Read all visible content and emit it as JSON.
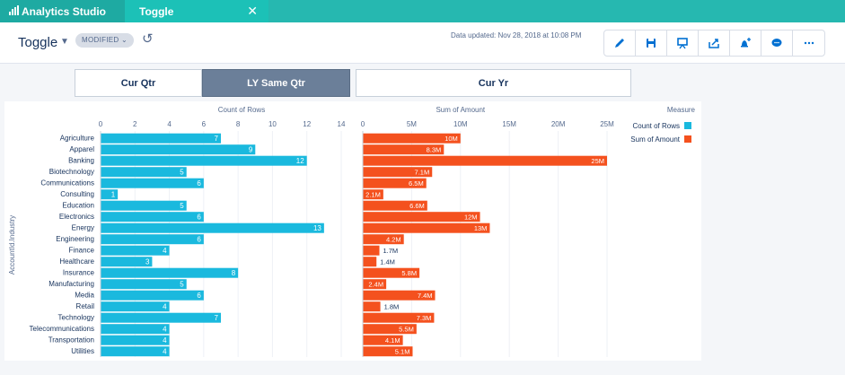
{
  "app": {
    "title": "Analytics Studio"
  },
  "tab": {
    "label": "Toggle"
  },
  "header": {
    "title": "Toggle",
    "badge": "MODIFIED",
    "updated": "Data updated: Nov 28, 2018 at 10:08 PM"
  },
  "toggles": [
    "Cur Qtr",
    "LY Same Qtr",
    "Cur Yr"
  ],
  "toolbar": [
    "pencil-icon",
    "save-icon",
    "present-icon",
    "share-icon",
    "notify-icon",
    "comment-icon",
    "more-icon"
  ],
  "colors": {
    "count": "#1ab9de",
    "amount": "#f4511e",
    "teal": "#26b8b0"
  },
  "chart_data": [
    {
      "type": "bar",
      "orientation": "horizontal",
      "title": "Count of Rows",
      "ylabel": "AccountId.Industry",
      "xlim": [
        0,
        14
      ],
      "xticks": [
        "0",
        "2",
        "4",
        "6",
        "8",
        "10",
        "12",
        "14"
      ],
      "categories": [
        "Agriculture",
        "Apparel",
        "Banking",
        "Biotechnology",
        "Communications",
        "Consulting",
        "Education",
        "Electronics",
        "Energy",
        "Engineering",
        "Finance",
        "Healthcare",
        "Insurance",
        "Manufacturing",
        "Media",
        "Retail",
        "Technology",
        "Telecommunications",
        "Transportation",
        "Utilities"
      ],
      "values": [
        7,
        9,
        12,
        5,
        6,
        1,
        5,
        6,
        13,
        6,
        4,
        3,
        8,
        5,
        6,
        4,
        7,
        4,
        4,
        4
      ],
      "labels": [
        "7",
        "9",
        "12",
        "5",
        "6",
        "1",
        "5",
        "6",
        "13",
        "6",
        "4",
        "3",
        "8",
        "5",
        "6",
        "4",
        "7",
        "4",
        "4",
        "4"
      ]
    },
    {
      "type": "bar",
      "orientation": "horizontal",
      "title": "Sum of Amount",
      "xlim": [
        0,
        25
      ],
      "xticks": [
        "0",
        "5M",
        "10M",
        "15M",
        "20M",
        "25M"
      ],
      "values": [
        10,
        8.3,
        25,
        7.1,
        6.5,
        2.1,
        6.6,
        12,
        13,
        4.2,
        1.7,
        1.4,
        5.8,
        2.4,
        7.4,
        1.8,
        7.3,
        5.5,
        4.1,
        5.1
      ],
      "labels": [
        "10M",
        "8.3M",
        "25M",
        "7.1M",
        "6.5M",
        "2.1M",
        "6.6M",
        "12M",
        "13M",
        "4.2M",
        "1.7M",
        "1.4M",
        "5.8M",
        "2.4M",
        "7.4M",
        "1.8M",
        "7.3M",
        "5.5M",
        "4.1M",
        "5.1M"
      ]
    }
  ],
  "legend": {
    "title": "Measure",
    "items": [
      "Count of Rows",
      "Sum of Amount"
    ]
  }
}
